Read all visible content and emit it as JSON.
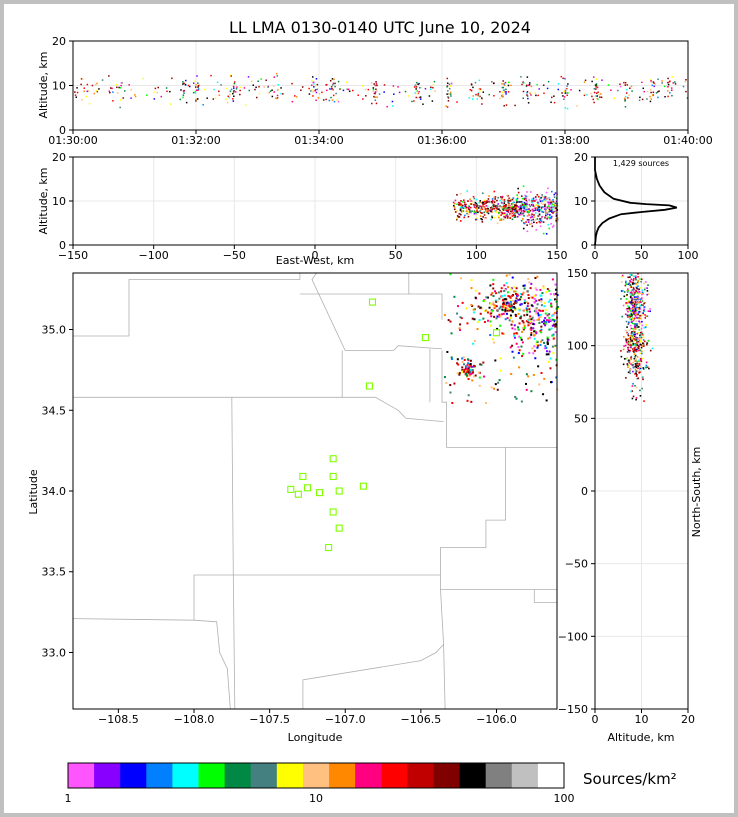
{
  "title": "LL LMA 0130-0140 UTC June 10, 2024",
  "colors": {
    "axis": "#000000",
    "grid": "#e8e8e8",
    "border": "#b0b0b0",
    "station": "#7fff00",
    "histogram": "#000000"
  },
  "chart_data": [
    {
      "id": "time_height",
      "type": "scatter",
      "ylabel": "Altitude, km",
      "ylim": [
        0,
        20
      ],
      "yticks": [
        "0",
        "10",
        "20"
      ],
      "xticks": [
        "01:30:00",
        "01:32:00",
        "01:34:00",
        "01:36:00",
        "01:38:00",
        "01:40:00"
      ],
      "xlim_minutes": [
        0,
        10
      ],
      "typical_altitude_km": [
        6,
        12
      ],
      "grid": true
    },
    {
      "id": "ew_height",
      "type": "scatter",
      "xlabel": "East-West, km",
      "ylabel": "Altitude, km",
      "xlim": [
        -150,
        150
      ],
      "ylim": [
        0,
        20
      ],
      "xticks": [
        "−150",
        "−100",
        "−50",
        "0",
        "50",
        "100",
        "150"
      ],
      "yticks": [
        "0",
        "10",
        "20"
      ],
      "source_x_range_km": [
        85,
        150
      ],
      "grid": true
    },
    {
      "id": "alt_histogram",
      "type": "line",
      "annotation": "1,429 sources",
      "xlim": [
        0,
        100
      ],
      "ylim": [
        0,
        20
      ],
      "xticks": [
        "0",
        "50",
        "100"
      ],
      "yticks": [
        "0",
        "10",
        "20"
      ],
      "x": [
        0,
        1,
        2,
        4,
        8,
        15,
        28,
        50,
        75,
        88,
        80,
        55,
        38,
        20,
        10,
        5,
        2,
        0,
        0
      ],
      "y": [
        0,
        2,
        3,
        4,
        5,
        6,
        7,
        7.5,
        8,
        8.5,
        9,
        9.3,
        9.6,
        10.5,
        12,
        13.5,
        15,
        17,
        20
      ]
    },
    {
      "id": "plan_view",
      "type": "scatter",
      "xlabel": "Longitude",
      "ylabel": "Latitude",
      "xlim": [
        -108.8,
        -105.6
      ],
      "ylim": [
        32.65,
        35.35
      ],
      "xticks": [
        "−108.5",
        "−108.0",
        "−107.5",
        "−107.0",
        "−106.5",
        "−106.0"
      ],
      "yticks": [
        "33.0",
        "33.5",
        "34.0",
        "34.5",
        "35.0"
      ],
      "stations": [
        [
          -106.82,
          35.17
        ],
        [
          -106.47,
          34.95
        ],
        [
          -106.84,
          34.65
        ],
        [
          -106.0,
          34.98
        ],
        [
          -107.08,
          34.2
        ],
        [
          -107.28,
          34.09
        ],
        [
          -107.08,
          34.09
        ],
        [
          -107.36,
          34.01
        ],
        [
          -107.25,
          34.02
        ],
        [
          -107.31,
          33.98
        ],
        [
          -107.17,
          33.99
        ],
        [
          -107.04,
          34.0
        ],
        [
          -106.88,
          34.03
        ],
        [
          -107.08,
          33.87
        ],
        [
          -107.04,
          33.77
        ],
        [
          -107.11,
          33.65
        ]
      ],
      "source_region": {
        "lon": [
          -106.35,
          -105.6
        ],
        "lat": [
          34.55,
          35.35
        ]
      }
    },
    {
      "id": "ns_height",
      "type": "scatter",
      "xlabel": "Altitude, km",
      "ylabel": "North-South, km",
      "xlim": [
        0,
        20
      ],
      "ylim": [
        -150,
        150
      ],
      "xticks": [
        "0",
        "10",
        "20"
      ],
      "yticks": [
        "−150",
        "−100",
        "−50",
        "0",
        "50",
        "100",
        "150"
      ],
      "source_y_range_km": [
        62,
        150
      ]
    },
    {
      "id": "colorbar",
      "type": "heatmap",
      "label": "Sources/km²",
      "ticks": [
        "1",
        "10",
        "100"
      ],
      "scale": "log",
      "range": [
        1,
        100
      ],
      "colors": [
        "#ff55ff",
        "#8800ff",
        "#0000ff",
        "#0080ff",
        "#00ffff",
        "#00ff00",
        "#008844",
        "#448080",
        "#ffff00",
        "#ffc080",
        "#ff8800",
        "#ff0080",
        "#ff0000",
        "#c00000",
        "#800000",
        "#000000",
        "#808080",
        "#c0c0c0",
        "#ffffff"
      ]
    }
  ]
}
